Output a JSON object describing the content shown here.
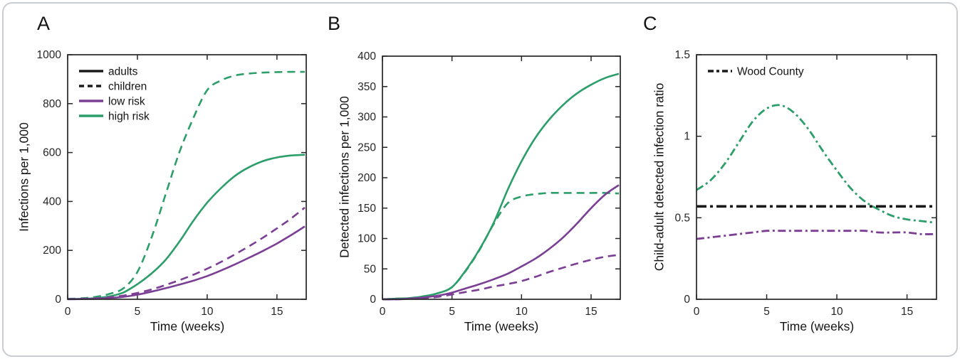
{
  "figure": {
    "background": "#ffffff",
    "border_color": "#c9cdd1"
  },
  "colors": {
    "high_risk_green": "#2b9e6a",
    "low_risk_purple": "#7b3e95",
    "reference_black": "#1a1a1a",
    "axis": "#262626"
  },
  "chart_data": [
    {
      "letter": "A",
      "type": "line",
      "xlabel": "Time (weeks)",
      "ylabel": "Infections per 1,000",
      "xlim": [
        0,
        17.1
      ],
      "ylim": [
        0,
        1000
      ],
      "xticks": [
        0,
        5,
        10,
        15
      ],
      "yticks": [
        0,
        200,
        400,
        600,
        800,
        1000
      ],
      "grid": false,
      "x": [
        0,
        1,
        2,
        3,
        4,
        5,
        6,
        7,
        8,
        9,
        10,
        11,
        12,
        13,
        14,
        15,
        16,
        17
      ],
      "series": [
        {
          "name": "adults high risk",
          "color": "#2b9e6a",
          "style": "solid",
          "values": [
            1,
            2,
            5,
            12,
            28,
            62,
            105,
            160,
            235,
            320,
            395,
            455,
            505,
            540,
            565,
            580,
            588,
            591
          ]
        },
        {
          "name": "children high risk",
          "color": "#2b9e6a",
          "style": "dashed",
          "values": [
            2,
            4,
            10,
            22,
            45,
            112,
            250,
            425,
            600,
            740,
            855,
            895,
            915,
            923,
            927,
            929,
            930,
            930
          ]
        },
        {
          "name": "adults low risk",
          "color": "#7b3e95",
          "style": "solid",
          "values": [
            0,
            1,
            2,
            5,
            10,
            19,
            31,
            45,
            60,
            76,
            95,
            118,
            143,
            170,
            198,
            228,
            262,
            298
          ]
        },
        {
          "name": "children low risk",
          "color": "#7b3e95",
          "style": "dashed",
          "values": [
            1,
            2,
            4,
            8,
            15,
            26,
            40,
            58,
            78,
            100,
            125,
            153,
            184,
            217,
            252,
            290,
            330,
            375
          ]
        }
      ],
      "legend": {
        "position": "top-left",
        "items": [
          {
            "label": "adults",
            "color": "#1a1a1a",
            "style": "solid"
          },
          {
            "label": "children",
            "color": "#1a1a1a",
            "style": "dashed"
          },
          {
            "label": "low risk",
            "color": "#7b3e95",
            "style": "solid"
          },
          {
            "label": "high risk",
            "color": "#2b9e6a",
            "style": "solid"
          }
        ]
      }
    },
    {
      "letter": "B",
      "type": "line",
      "xlabel": "Time (weeks)",
      "ylabel": "Detected infections per 1,000",
      "xlim": [
        0,
        17.1
      ],
      "ylim": [
        0,
        400
      ],
      "xticks": [
        0,
        5,
        10,
        15
      ],
      "yticks": [
        0,
        50,
        100,
        150,
        200,
        250,
        300,
        350,
        400
      ],
      "grid": false,
      "x": [
        0,
        1,
        2,
        3,
        4,
        5,
        6,
        7,
        8,
        9,
        10,
        11,
        12,
        13,
        14,
        15,
        16,
        17
      ],
      "series": [
        {
          "name": "adults high risk",
          "color": "#2b9e6a",
          "style": "solid",
          "values": [
            0,
            1,
            2,
            5,
            10,
            20,
            48,
            83,
            126,
            180,
            227,
            266,
            296,
            320,
            339,
            353,
            364,
            371
          ]
        },
        {
          "name": "children high risk",
          "color": "#2b9e6a",
          "style": "dashed",
          "values": [
            0,
            1,
            2,
            5,
            10,
            20,
            47,
            82,
            124,
            158,
            169,
            173,
            175,
            175,
            175,
            175,
            175,
            174
          ]
        },
        {
          "name": "adults low risk",
          "color": "#7b3e95",
          "style": "solid",
          "values": [
            0,
            0,
            1,
            3,
            6,
            11,
            18,
            25,
            33,
            42,
            54,
            67,
            83,
            102,
            125,
            150,
            172,
            188
          ]
        },
        {
          "name": "children low risk",
          "color": "#7b3e95",
          "style": "dashed",
          "values": [
            0,
            0,
            1,
            2,
            4,
            8,
            12,
            16,
            21,
            25,
            30,
            37,
            45,
            52,
            59,
            65,
            70,
            73
          ]
        }
      ],
      "legend": null
    },
    {
      "letter": "C",
      "type": "line",
      "xlabel": "Time (weeks)",
      "ylabel": "Child-adult detected infection ratio",
      "xlim": [
        0,
        17.1
      ],
      "ylim": [
        0,
        1.5
      ],
      "xticks": [
        0,
        5,
        10,
        15
      ],
      "yticks": [
        0,
        0.5,
        1,
        1.5
      ],
      "grid": false,
      "x": [
        0,
        1,
        2,
        3,
        4,
        5,
        6,
        7,
        8,
        9,
        10,
        11,
        12,
        13,
        14,
        15,
        16,
        17
      ],
      "series": [
        {
          "name": "low risk ratio",
          "color": "#7b3e95",
          "style": "dashdot",
          "width": 2.8,
          "values": [
            0.37,
            0.38,
            0.39,
            0.4,
            0.41,
            0.42,
            0.42,
            0.42,
            0.42,
            0.42,
            0.42,
            0.42,
            0.42,
            0.41,
            0.41,
            0.41,
            0.4,
            0.4
          ]
        },
        {
          "name": "high risk ratio",
          "color": "#2b9e6a",
          "style": "dashdot",
          "width": 2.8,
          "values": [
            0.67,
            0.73,
            0.83,
            0.96,
            1.09,
            1.17,
            1.19,
            1.14,
            1.04,
            0.91,
            0.79,
            0.68,
            0.6,
            0.55,
            0.51,
            0.49,
            0.48,
            0.47
          ]
        },
        {
          "name": "Wood County",
          "color": "#1a1a1a",
          "style": "dashdot",
          "width": 3.6,
          "values": [
            0.57,
            0.57,
            0.57,
            0.57,
            0.57,
            0.57,
            0.57,
            0.57,
            0.57,
            0.57,
            0.57,
            0.57,
            0.57,
            0.57,
            0.57,
            0.57,
            0.57,
            0.57
          ]
        }
      ],
      "legend": {
        "position": "top-left",
        "items": [
          {
            "label": "Wood County",
            "color": "#1a1a1a",
            "style": "dashdot"
          }
        ]
      }
    }
  ]
}
